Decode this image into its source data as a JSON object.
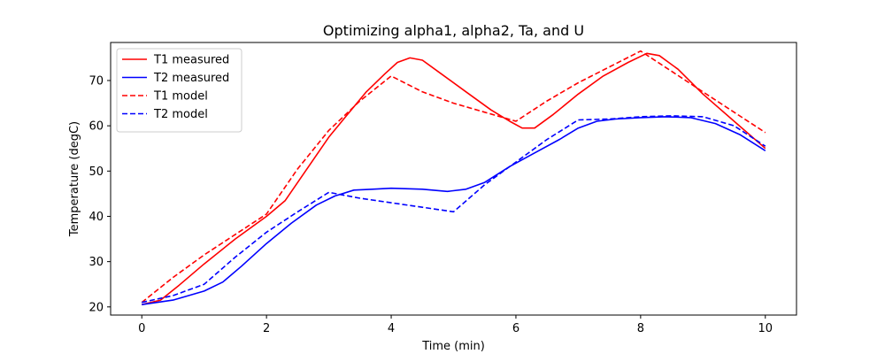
{
  "chart_data": {
    "type": "line",
    "title": "Optimizing alpha1, alpha2, Ta, and U",
    "xlabel": "Time (min)",
    "ylabel": "Temperature (degC)",
    "xlim": [
      -0.5,
      10.5
    ],
    "ylim": [
      18.2,
      78.4
    ],
    "xticks": [
      0,
      2,
      4,
      6,
      8,
      10
    ],
    "yticks": [
      20,
      30,
      40,
      50,
      60,
      70
    ],
    "grid": false,
    "legend_position": "top-left",
    "series": [
      {
        "name": "T1 measured",
        "color": "#ff0000",
        "style": "solid",
        "x": [
          0,
          0.3,
          0.6,
          1.0,
          1.5,
          2.0,
          2.3,
          2.7,
          3.0,
          3.3,
          3.6,
          3.9,
          4.1,
          4.3,
          4.5,
          4.8,
          5.2,
          5.6,
          5.9,
          6.1,
          6.3,
          6.6,
          7.0,
          7.4,
          7.8,
          8.1,
          8.3,
          8.6,
          9.0,
          9.5,
          10.0
        ],
        "y": [
          20.5,
          21.5,
          24.8,
          29.5,
          35.0,
          40.0,
          43.5,
          51.5,
          57.5,
          62.5,
          67.5,
          71.5,
          74.0,
          75.0,
          74.5,
          71.5,
          67.5,
          63.5,
          61.0,
          59.5,
          59.5,
          62.5,
          67.0,
          71.0,
          74.0,
          76.0,
          75.5,
          72.5,
          67.0,
          61.0,
          55.0
        ]
      },
      {
        "name": "T2 measured",
        "color": "#0000ff",
        "style": "solid",
        "x": [
          0,
          0.5,
          1.0,
          1.3,
          1.6,
          2.0,
          2.4,
          2.8,
          3.1,
          3.4,
          3.7,
          4.0,
          4.5,
          4.9,
          5.2,
          5.5,
          5.9,
          6.3,
          6.7,
          7.0,
          7.3,
          7.6,
          8.0,
          8.4,
          8.8,
          9.2,
          9.6,
          10.0
        ],
        "y": [
          20.5,
          21.5,
          23.5,
          25.5,
          29.0,
          34.0,
          38.5,
          42.5,
          44.5,
          45.8,
          46.0,
          46.2,
          46.0,
          45.5,
          46.0,
          47.5,
          51.0,
          54.0,
          57.0,
          59.5,
          61.0,
          61.5,
          61.8,
          62.0,
          61.8,
          60.5,
          58.0,
          54.5
        ]
      },
      {
        "name": "T1 model",
        "color": "#ff0000",
        "style": "dashed",
        "x": [
          0,
          0.5,
          1.0,
          1.5,
          2.0,
          2.5,
          3.0,
          3.5,
          4.0,
          4.5,
          5.0,
          5.5,
          6.0,
          6.5,
          7.0,
          7.5,
          8.0,
          8.5,
          9.0,
          9.5,
          10.0
        ],
        "y": [
          21.0,
          26.5,
          31.5,
          36.0,
          40.5,
          50.5,
          59.0,
          65.5,
          71.0,
          67.5,
          65.0,
          63.0,
          61.0,
          65.5,
          69.5,
          73.0,
          76.5,
          72.0,
          67.5,
          63.0,
          58.5
        ]
      },
      {
        "name": "T2 model",
        "color": "#0000ff",
        "style": "dashed",
        "x": [
          0,
          0.5,
          1.0,
          1.5,
          2.0,
          2.5,
          3.0,
          3.5,
          4.0,
          4.5,
          5.0,
          5.5,
          6.0,
          6.5,
          7.0,
          7.5,
          8.0,
          8.5,
          9.0,
          9.5,
          10.0
        ],
        "y": [
          21.0,
          22.5,
          25.0,
          31.0,
          36.5,
          41.0,
          45.3,
          44.0,
          43.0,
          42.0,
          41.0,
          47.0,
          52.0,
          57.0,
          61.3,
          61.5,
          62.0,
          62.2,
          62.0,
          60.0,
          55.5
        ]
      }
    ]
  }
}
